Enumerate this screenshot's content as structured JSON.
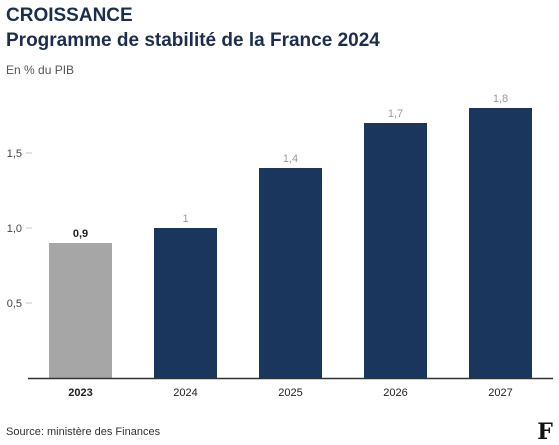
{
  "header": {
    "title": "CROISSANCE",
    "subtitle": "Programme de stabilité de la France 2024",
    "unit": "En % du PIB"
  },
  "footer": {
    "source": "Source: ministère des Finances"
  },
  "logo": {
    "icon": "le-figaro-f-logo",
    "letter": "F"
  },
  "colors": {
    "actual": "#a6a6a6",
    "forecast": "#1b365d",
    "axis": "#333333",
    "grid": "#c8c8c8",
    "label_muted": "#9a9a9a",
    "label_bold": "#1f1f1f"
  },
  "chart_data": {
    "type": "bar",
    "categories": [
      "2023",
      "2024",
      "2025",
      "2026",
      "2027"
    ],
    "values": [
      0.9,
      1.0,
      1.4,
      1.7,
      1.8
    ],
    "data_labels": [
      "0,9",
      "1",
      "1,4",
      "1,7",
      "1,8"
    ],
    "highlight_index": 0,
    "ylim": [
      0,
      1.8
    ],
    "yticks": [
      0.5,
      1.0,
      1.5
    ],
    "ytick_labels": [
      "0,5",
      "1,0",
      "1,5"
    ],
    "ylabel": "En % du PIB",
    "xlabel": "",
    "grid": false
  }
}
